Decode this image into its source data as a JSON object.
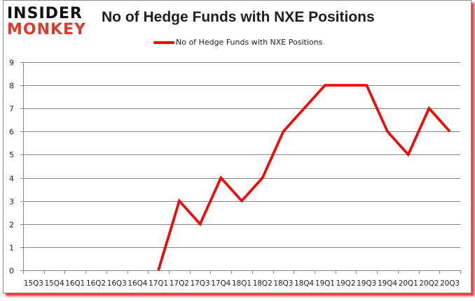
{
  "header": {
    "logo_line1": "INSIDER",
    "logo_line2": "MONKEY",
    "title": "No of Hedge Funds with NXE Positions"
  },
  "legend": {
    "label": "No of Hedge Funds with NXE Positions",
    "color": "#ff0000"
  },
  "colors": {
    "series": "#ff0000",
    "grid": "#868686",
    "frame_shadow": "#ff3030",
    "logo_accent": "#e03b2a"
  },
  "chart_data": {
    "type": "line",
    "title": "No of Hedge Funds with NXE Positions",
    "xlabel": "",
    "ylabel": "",
    "categories": [
      "15Q3",
      "15Q4",
      "16Q1",
      "16Q2",
      "16Q3",
      "16Q4",
      "17Q1",
      "17Q2",
      "17Q3",
      "17Q4",
      "18Q1",
      "18Q2",
      "18Q3",
      "18Q4",
      "19Q1",
      "19Q2",
      "19Q3",
      "19Q4",
      "20Q1",
      "20Q2",
      "20Q3"
    ],
    "series": [
      {
        "name": "No of Hedge Funds with NXE Positions",
        "color": "#ff0000",
        "values": [
          null,
          null,
          null,
          null,
          null,
          null,
          0,
          3,
          2,
          4,
          3,
          4,
          6,
          7,
          8,
          8,
          8,
          6,
          5,
          7,
          6
        ]
      }
    ],
    "ylim": [
      0,
      9
    ],
    "yticks": [
      0,
      1,
      2,
      3,
      4,
      5,
      6,
      7,
      8,
      9
    ],
    "grid": true,
    "legend_position": "top"
  }
}
